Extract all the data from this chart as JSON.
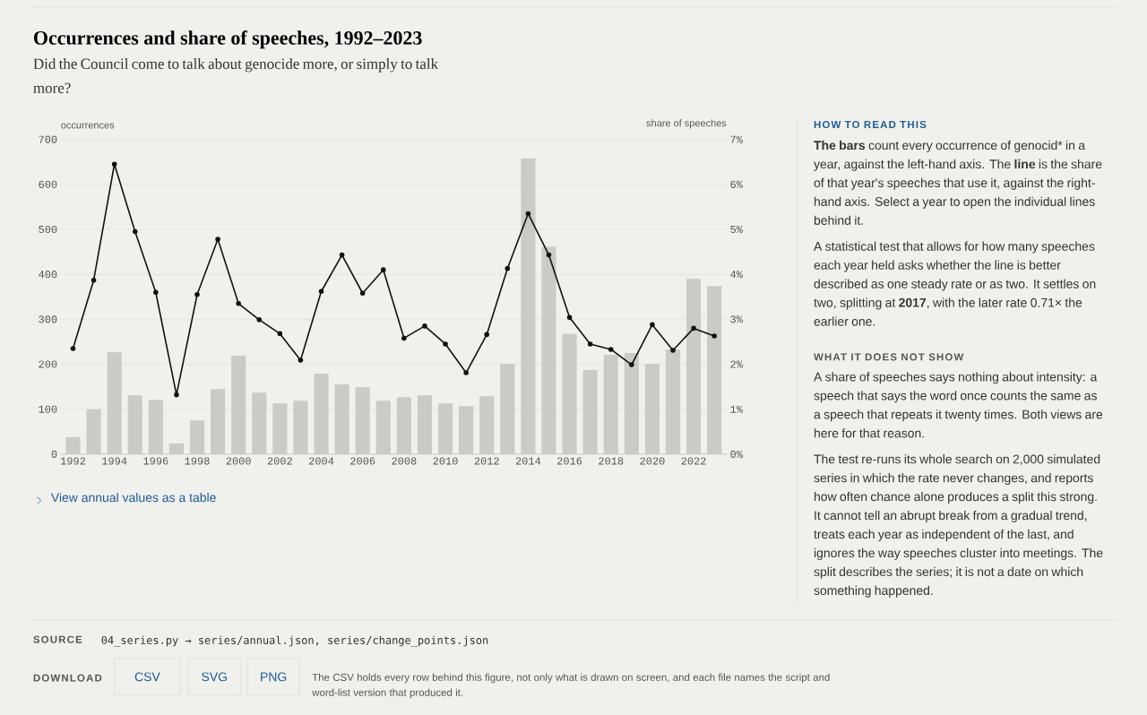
{
  "chart_data": {
    "type": "bar",
    "title": "Occurrences and share of speeches, 1992–2023",
    "subtitle": "Did the Council come to talk about genocide more, or simply to talk more?",
    "ylabel": "occurrences",
    "y2label": "share of speeches",
    "x": [
      1992,
      1993,
      1994,
      1995,
      1996,
      1997,
      1998,
      1999,
      2000,
      2001,
      2002,
      2003,
      2004,
      2005,
      2006,
      2007,
      2008,
      2009,
      2010,
      2011,
      2012,
      2013,
      2014,
      2015,
      2016,
      2017,
      2018,
      2019,
      2020,
      2021,
      2022,
      2023
    ],
    "xlim": [
      1991.4,
      2023.6
    ],
    "xticks": [
      1992,
      1994,
      1996,
      1998,
      2000,
      2002,
      2004,
      2006,
      2008,
      2010,
      2012,
      2014,
      2016,
      2018,
      2020,
      2022
    ],
    "ylim": [
      0,
      700
    ],
    "yticks": [
      0,
      100,
      200,
      300,
      400,
      500,
      600,
      700
    ],
    "y2lim": [
      0,
      7
    ],
    "y2ticks": [
      {
        "value": 0,
        "label": "0%"
      },
      {
        "value": 1,
        "label": "1%"
      },
      {
        "value": 2,
        "label": "2%"
      },
      {
        "value": 3,
        "label": "3%"
      },
      {
        "value": 4,
        "label": "4%"
      },
      {
        "value": 5,
        "label": "5%"
      },
      {
        "value": 6,
        "label": "6%"
      },
      {
        "value": 7,
        "label": "7%"
      }
    ],
    "grid": "y",
    "marker": "circle",
    "series": [
      {
        "color": "#cacac7",
        "values": [
          38,
          100,
          227,
          131,
          121,
          24,
          75,
          145,
          219,
          137,
          113,
          119,
          179,
          155,
          149,
          119,
          127,
          131,
          113,
          107,
          129,
          201,
          658,
          461,
          268,
          187,
          221,
          225,
          201,
          233,
          390,
          374
        ]
      },
      {
        "type": "line",
        "axis": "y2",
        "color": "#111111",
        "values": [
          2.35,
          3.87,
          6.45,
          4.95,
          3.6,
          1.32,
          3.55,
          4.78,
          3.35,
          2.99,
          2.68,
          2.09,
          3.62,
          4.43,
          3.58,
          4.1,
          2.58,
          2.85,
          2.45,
          1.81,
          2.66,
          4.13,
          5.35,
          4.43,
          3.04,
          2.45,
          2.33,
          1.99,
          2.88,
          2.31,
          2.8,
          2.63
        ]
      }
    ],
    "annotations": [
      "View annual values as a table",
      "HOW TO READ THIS",
      "**The bars** count every occurrence of genocid* in a year, against the left-hand axis. The **line** is the share of that year's speeches that use it, against the right-hand axis. Select a year to open the individual lines behind it.",
      "A statistical test that allows for how many speeches each year held asks whether the line is better described as one steady rate or as two. It settles on two, splitting at **2017**, with the later rate 0.71× the earlier one.",
      "WHAT IT DOES NOT SHOW",
      "A share of speeches says nothing about intensity: a speech that says the word once counts the same as a speech that repeats it twenty times. Both views are here for that reason.",
      "The test re-runs its whole search on 2,000 simulated series in which the rate never changes, and reports how often chance alone produces a split this strong. It cannot tell an abrupt break from a gradual trend, treats each year as independent of the last, and ignores the way speeches cluster into meetings. The split describes the series; it is not a date on which something happened.",
      "SOURCE",
      "04_series.py → series/annual.json, series/change_points.json",
      "DOWNLOAD",
      "CSV",
      "SVG",
      "PNG",
      "The CSV holds every row behind this figure, not only what is drawn on screen, and each file names the script and word-list version that produced it."
    ]
  }
}
